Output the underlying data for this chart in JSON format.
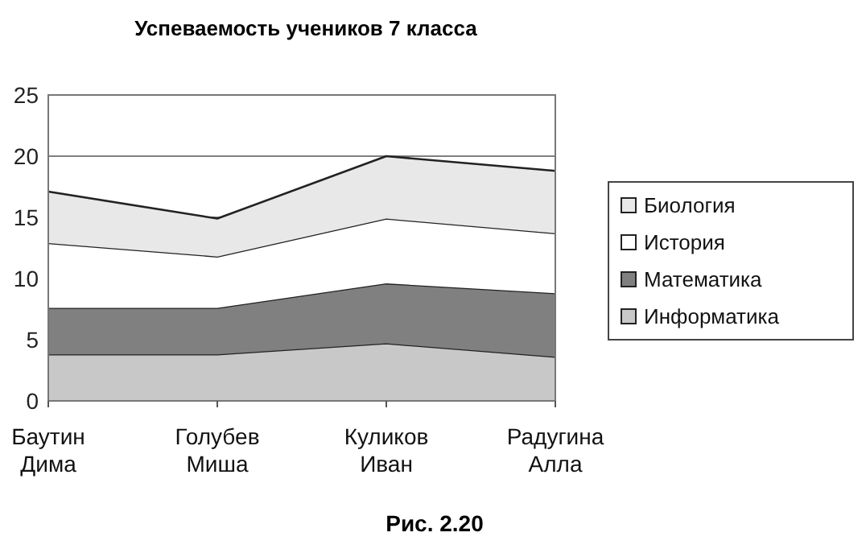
{
  "chart_data": {
    "type": "area",
    "stacked": true,
    "title": "Успеваемость учеников 7 класса",
    "categories": [
      "Баутин Дима",
      "Голубев Миша",
      "Куликов Иван",
      "Радугина Алла"
    ],
    "series": [
      {
        "name": "Информатика",
        "color": "#c8c8c8",
        "values": [
          3.8,
          3.8,
          4.7,
          3.6
        ]
      },
      {
        "name": "Математика",
        "color": "#808080",
        "values": [
          3.8,
          3.8,
          4.9,
          5.2
        ]
      },
      {
        "name": "История",
        "color": "#ffffff",
        "values": [
          5.3,
          4.2,
          5.3,
          4.9
        ]
      },
      {
        "name": "Биология",
        "color": "#e8e8e8",
        "values": [
          4.2,
          3.1,
          5.1,
          5.1
        ]
      }
    ],
    "ylim": [
      0,
      25
    ],
    "yticks": [
      0,
      5,
      10,
      15,
      20,
      25
    ],
    "grid": "y",
    "legend": "right",
    "annotations": [
      "Рис. 2.20"
    ]
  }
}
